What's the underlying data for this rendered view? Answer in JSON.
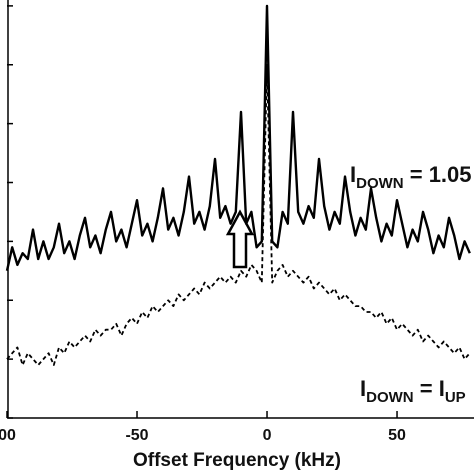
{
  "chart_data": {
    "type": "line",
    "xlabel": "Offset Frequency (kHz)",
    "x": [
      -100,
      -98,
      -96,
      -94,
      -92,
      -90,
      -88,
      -86,
      -84,
      -82,
      -80,
      -78,
      -76,
      -74,
      -72,
      -70,
      -68,
      -66,
      -64,
      -62,
      -60,
      -58,
      -56,
      -54,
      -52,
      -50,
      -48,
      -46,
      -44,
      -42,
      -40,
      -38,
      -36,
      -34,
      -32,
      -30,
      -28,
      -26,
      -24,
      -22,
      -20,
      -18,
      -16,
      -14,
      -12,
      -10,
      -8,
      -6,
      -4,
      -2,
      0,
      2,
      4,
      6,
      8,
      10,
      12,
      14,
      16,
      18,
      20,
      22,
      24,
      26,
      28,
      30,
      32,
      34,
      36,
      38,
      40,
      42,
      44,
      46,
      48,
      50,
      52,
      54,
      56,
      58,
      60,
      62,
      64,
      66,
      68,
      70,
      72,
      74,
      76,
      78
    ],
    "series": [
      {
        "color": "#000000",
        "dash": false,
        "values": [
          2.5,
          2.9,
          2.6,
          2.8,
          2.7,
          3.2,
          2.7,
          3.0,
          2.7,
          2.9,
          3.3,
          2.8,
          3.0,
          2.7,
          3.1,
          3.4,
          2.9,
          3.1,
          2.8,
          3.2,
          3.5,
          3.0,
          3.2,
          2.9,
          3.3,
          3.7,
          3.1,
          3.3,
          3.0,
          3.4,
          3.9,
          3.2,
          3.4,
          3.1,
          3.5,
          4.1,
          3.3,
          3.5,
          3.2,
          3.6,
          4.4,
          3.4,
          3.6,
          3.3,
          3.5,
          5.2,
          3.3,
          3.5,
          2.9,
          3.0,
          7.0,
          3.0,
          2.9,
          3.5,
          3.3,
          5.2,
          3.5,
          3.3,
          3.6,
          3.4,
          4.4,
          3.6,
          3.2,
          3.5,
          3.3,
          4.1,
          3.5,
          3.1,
          3.4,
          3.2,
          3.9,
          3.4,
          3.0,
          3.3,
          3.1,
          3.7,
          3.3,
          2.9,
          3.2,
          3.0,
          3.5,
          3.2,
          2.8,
          3.1,
          2.9,
          3.4,
          3.1,
          2.7,
          3.0,
          2.8
        ]
      },
      {
        "color": "#000000",
        "dash": true,
        "values": [
          1.0,
          1.1,
          1.2,
          0.9,
          1.1,
          1.0,
          0.9,
          1.0,
          1.1,
          0.9,
          1.2,
          1.1,
          1.3,
          1.2,
          1.3,
          1.4,
          1.3,
          1.5,
          1.4,
          1.5,
          1.5,
          1.6,
          1.4,
          1.6,
          1.7,
          1.6,
          1.8,
          1.7,
          1.9,
          1.8,
          1.9,
          2.0,
          1.9,
          2.1,
          2.0,
          2.1,
          2.2,
          2.1,
          2.3,
          2.2,
          2.3,
          2.4,
          2.3,
          2.4,
          2.3,
          2.5,
          2.4,
          2.6,
          2.5,
          2.3,
          6.0,
          2.3,
          2.5,
          2.6,
          2.4,
          2.5,
          2.4,
          2.3,
          2.4,
          2.2,
          2.3,
          2.2,
          2.1,
          2.2,
          2.0,
          2.1,
          2.0,
          1.9,
          1.9,
          1.8,
          1.8,
          1.7,
          1.8,
          1.6,
          1.7,
          1.5,
          1.6,
          1.5,
          1.4,
          1.5,
          1.3,
          1.4,
          1.3,
          1.2,
          1.3,
          1.2,
          1.1,
          1.2,
          1.0,
          1.1
        ]
      }
    ],
    "xlim": [
      -100,
      79.6
    ],
    "ylim": [
      0,
      7.1
    ],
    "xticks": [
      {
        "value": -100,
        "label": "00"
      },
      -50,
      0,
      50
    ],
    "yticks": [
      0,
      1,
      2,
      3,
      4,
      5,
      6,
      7
    ],
    "annotations": [
      {
        "main": "I",
        "sub": "DOWN",
        "rest": " = 1.05"
      },
      {
        "main": "I",
        "sub": "DOWN",
        "rest": " = I",
        "sub2": "UP"
      }
    ]
  }
}
